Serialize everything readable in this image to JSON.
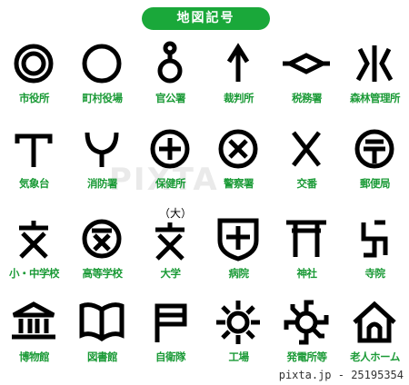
{
  "title": "地図記号",
  "symbols": [
    {
      "label": "市役所",
      "icon": "city-hall-icon"
    },
    {
      "label": "町村役場",
      "icon": "town-office-icon"
    },
    {
      "label": "官公署",
      "icon": "government-office-icon"
    },
    {
      "label": "裁判所",
      "icon": "courthouse-icon"
    },
    {
      "label": "税務署",
      "icon": "tax-office-icon"
    },
    {
      "label": "森林管理所",
      "icon": "forest-office-icon"
    },
    {
      "label": "気象台",
      "icon": "weather-station-icon"
    },
    {
      "label": "消防署",
      "icon": "fire-station-icon"
    },
    {
      "label": "保健所",
      "icon": "health-center-icon"
    },
    {
      "label": "警察署",
      "icon": "police-station-icon"
    },
    {
      "label": "交番",
      "icon": "police-box-icon"
    },
    {
      "label": "郵便局",
      "icon": "post-office-icon"
    },
    {
      "label": "小・中学校",
      "icon": "school-icon"
    },
    {
      "label": "高等学校",
      "icon": "high-school-icon"
    },
    {
      "label": "大学",
      "icon": "university-icon"
    },
    {
      "label": "病院",
      "icon": "hospital-icon"
    },
    {
      "label": "神社",
      "icon": "shrine-icon"
    },
    {
      "label": "寺院",
      "icon": "temple-icon"
    },
    {
      "label": "博物館",
      "icon": "museum-icon"
    },
    {
      "label": "図書館",
      "icon": "library-icon"
    },
    {
      "label": "自衛隊",
      "icon": "self-defense-force-icon"
    },
    {
      "label": "工場",
      "icon": "factory-icon"
    },
    {
      "label": "発電所等",
      "icon": "power-plant-icon"
    },
    {
      "label": "老人ホーム",
      "icon": "nursing-home-icon"
    }
  ],
  "university_note": "（大）",
  "watermark": "PIXTA",
  "credit": "pixta.jp - 25195354"
}
